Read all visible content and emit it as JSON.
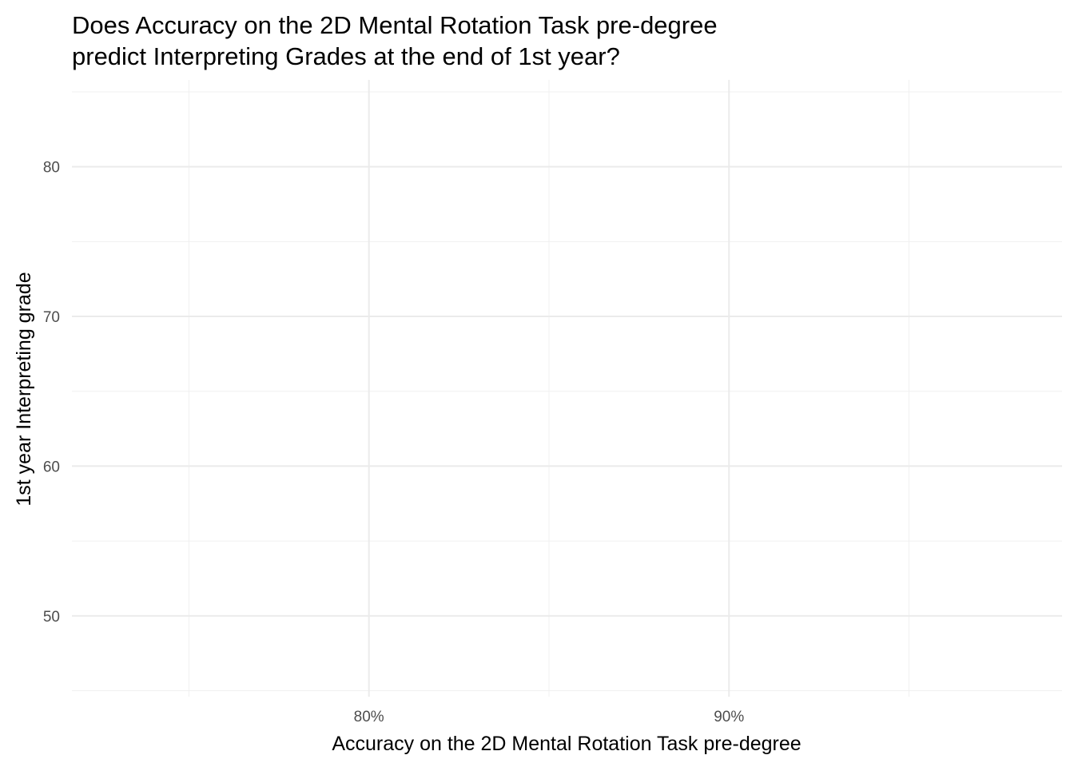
{
  "chart_data": {
    "type": "scatter",
    "title_lines": [
      "Does Accuracy on the 2D Mental Rotation Task pre-degree",
      "predict Interpreting Grades at the end of 1st year?"
    ],
    "xlabel": "Accuracy on the 2D Mental Rotation Task pre-degree",
    "ylabel": "1st year Interpreting grade",
    "xlim": [
      0.7175,
      0.9925
    ],
    "ylim": [
      44.6,
      85.8
    ],
    "x_major_ticks": [
      0.8,
      0.9
    ],
    "x_tick_labels": [
      "80%",
      "90%"
    ],
    "x_minor_ticks": [
      0.75,
      0.85,
      0.95
    ],
    "y_major_ticks": [
      50,
      60,
      70,
      80
    ],
    "y_tick_labels": [
      "50",
      "60",
      "70",
      "80"
    ],
    "y_minor_ticks": [
      45,
      55,
      65,
      75,
      85
    ],
    "grid": true,
    "points": []
  }
}
